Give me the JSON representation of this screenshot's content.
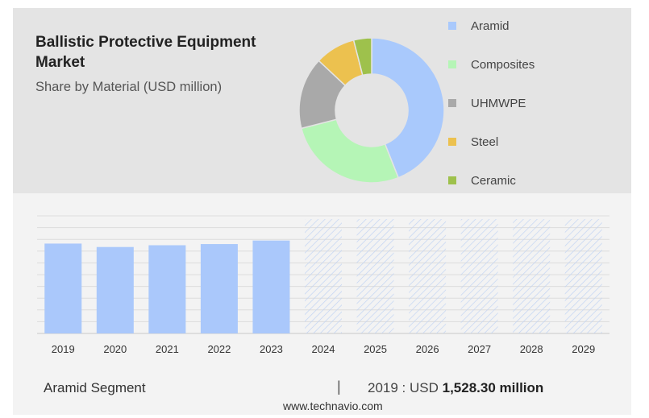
{
  "header": {
    "title": "Ballistic Protective Equipment Market",
    "subtitle": "Share by Material (USD million)"
  },
  "colors": {
    "bar": "#aac8fb",
    "hatch": "#c2d4f3",
    "grid": "#dcdcdc",
    "panel": "#e4e4e4"
  },
  "chart_data": [
    {
      "type": "pie",
      "variant": "donut",
      "categories": [
        "Aramid",
        "Composites",
        "UHMWPE",
        "Steel",
        "Ceramic"
      ],
      "values": [
        44,
        27,
        16,
        9,
        4
      ],
      "colors": [
        "#a9c9fc",
        "#b5f5b6",
        "#a9a9a9",
        "#ecc14f",
        "#9ec14c"
      ],
      "legend_position": "right"
    },
    {
      "type": "bar",
      "categories": [
        "2019",
        "2020",
        "2021",
        "2022",
        "2023",
        "2024",
        "2025",
        "2026",
        "2027",
        "2028",
        "2029"
      ],
      "values": [
        1528.3,
        1470,
        1500,
        1520,
        1580,
        null,
        null,
        null,
        null,
        null,
        null
      ],
      "forecast_categories": [
        "2024",
        "2025",
        "2026",
        "2027",
        "2028",
        "2029"
      ],
      "ylim": [
        0,
        2000
      ],
      "grid": true
    }
  ],
  "footer": {
    "segment_label": "Aramid Segment",
    "separator": "|",
    "value_prefix": "2019 : USD ",
    "value_bold": "1,528.30 million",
    "url": "www.technavio.com"
  }
}
